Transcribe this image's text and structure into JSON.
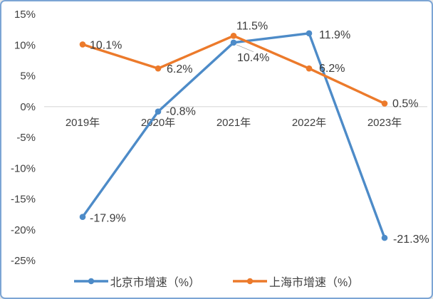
{
  "chart_data": {
    "type": "line",
    "categories": [
      "2019年",
      "2020年",
      "2021年",
      "2022年",
      "2023年"
    ],
    "series": [
      {
        "key": "beijing",
        "name": "北京市增速（%）",
        "color": "#4d8bc8",
        "values": [
          -17.9,
          -0.8,
          10.4,
          11.9,
          -21.3
        ],
        "labels": [
          "-17.9%",
          "-0.8%",
          "10.4%",
          "11.9%",
          "-21.3%"
        ],
        "label_offsets": [
          [
            10,
            2
          ],
          [
            11,
            0
          ],
          [
            5,
            21
          ],
          [
            14,
            2
          ],
          [
            12,
            2
          ]
        ]
      },
      {
        "key": "shanghai",
        "name": "上海市增速（%）",
        "color": "#ec7a2b",
        "values": [
          10.1,
          6.2,
          11.5,
          6.2,
          0.5
        ],
        "labels": [
          "10.1%",
          "6.2%",
          "11.5%",
          "6.2%",
          "0.5%"
        ],
        "label_offsets": [
          [
            10,
            1
          ],
          [
            12,
            1
          ],
          [
            4,
            -14
          ],
          [
            14,
            0
          ],
          [
            11,
            0
          ]
        ]
      }
    ],
    "y_axis": {
      "tick_values": [
        15,
        10,
        5,
        0,
        -5,
        -10,
        -15,
        -20,
        -25
      ],
      "tick_labels": [
        "15%",
        "10%",
        "5%",
        "0%",
        "-5%",
        "-10%",
        "-15%",
        "-20%",
        "-25%"
      ],
      "min": -25,
      "max": 15
    },
    "legend_position": "bottom",
    "grid": false,
    "leader_line": {
      "series_index": 0,
      "point_index": 2
    }
  },
  "colors": {
    "border": "#7ca5d4",
    "background": "#ffffff",
    "text": "#404040",
    "zero_line": "#d9d9d9",
    "leader": "#9e9e9e"
  }
}
